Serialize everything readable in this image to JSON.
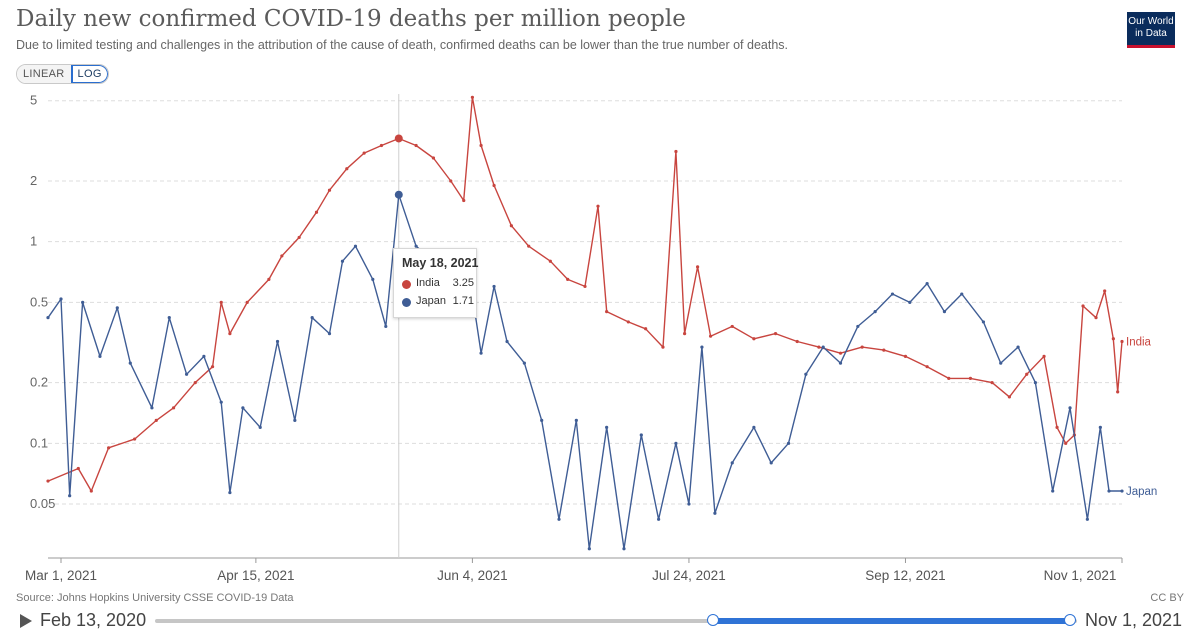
{
  "header": {
    "title": "Daily new confirmed COVID-19 deaths per million people",
    "subtitle": "Due to limited testing and challenges in the attribution of the cause of death, confirmed deaths can be lower than the true number of deaths.",
    "logo_line1": "Our World",
    "logo_line2": "in Data"
  },
  "scale_toggle": {
    "linear_label": "LINEAR",
    "log_label": "LOG",
    "selected": "LOG"
  },
  "tooltip": {
    "date": "May 18, 2021",
    "rows": [
      {
        "name": "India",
        "value": "3.25"
      },
      {
        "name": "Japan",
        "value": "1.71"
      }
    ]
  },
  "footer": {
    "source": "Source: Johns Hopkins University CSSE COVID-19 Data",
    "license": "CC BY"
  },
  "timeline": {
    "start_label": "Feb 13, 2020",
    "end_label": "Nov 1, 2021",
    "selected_start_fraction": 0.61,
    "selected_end_fraction": 1.0
  },
  "colors": {
    "India": "#c8453f",
    "Japan": "#3f5d95",
    "grid": "#dddddd",
    "accent": "#2f73d6"
  },
  "chart_data": {
    "type": "line",
    "title": "Daily new confirmed COVID-19 deaths per million people",
    "yscale": "log",
    "ylim": [
      0.027,
      5.4
    ],
    "yticks": [
      0.05,
      0.1,
      0.2,
      0.5,
      1,
      2,
      5
    ],
    "ytick_labels": [
      "0.05",
      "0.1",
      "0.2",
      "0.5",
      "1",
      "2",
      "5"
    ],
    "xlim": [
      "2021-02-26",
      "2021-11-01"
    ],
    "xticks": [
      "2021-03-01",
      "2021-04-15",
      "2021-06-04",
      "2021-07-24",
      "2021-09-12",
      "2021-11-01"
    ],
    "xtick_labels": [
      "Mar 1, 2021",
      "Apr 15, 2021",
      "Jun 4, 2021",
      "Jul 24, 2021",
      "Sep 12, 2021",
      "Nov 1, 2021"
    ],
    "hover_date": "2021-05-18",
    "series": [
      {
        "name": "India",
        "points": [
          [
            "2021-02-26",
            0.065
          ],
          [
            "2021-03-05",
            0.075
          ],
          [
            "2021-03-08",
            0.058
          ],
          [
            "2021-03-12",
            0.095
          ],
          [
            "2021-03-18",
            0.105
          ],
          [
            "2021-03-23",
            0.13
          ],
          [
            "2021-03-27",
            0.15
          ],
          [
            "2021-04-01",
            0.2
          ],
          [
            "2021-04-05",
            0.24
          ],
          [
            "2021-04-07",
            0.5
          ],
          [
            "2021-04-09",
            0.35
          ],
          [
            "2021-04-13",
            0.5
          ],
          [
            "2021-04-18",
            0.65
          ],
          [
            "2021-04-21",
            0.85
          ],
          [
            "2021-04-25",
            1.05
          ],
          [
            "2021-04-29",
            1.4
          ],
          [
            "2021-05-02",
            1.8
          ],
          [
            "2021-05-06",
            2.3
          ],
          [
            "2021-05-10",
            2.75
          ],
          [
            "2021-05-14",
            3.0
          ],
          [
            "2021-05-18",
            3.25
          ],
          [
            "2021-05-22",
            3.0
          ],
          [
            "2021-05-26",
            2.6
          ],
          [
            "2021-05-30",
            2.0
          ],
          [
            "2021-06-02",
            1.6
          ],
          [
            "2021-06-04",
            5.2
          ],
          [
            "2021-06-06",
            3.0
          ],
          [
            "2021-06-09",
            1.9
          ],
          [
            "2021-06-13",
            1.2
          ],
          [
            "2021-06-17",
            0.95
          ],
          [
            "2021-06-22",
            0.8
          ],
          [
            "2021-06-26",
            0.65
          ],
          [
            "2021-06-30",
            0.6
          ],
          [
            "2021-07-03",
            1.5
          ],
          [
            "2021-07-05",
            0.45
          ],
          [
            "2021-07-10",
            0.4
          ],
          [
            "2021-07-14",
            0.37
          ],
          [
            "2021-07-18",
            0.3
          ],
          [
            "2021-07-21",
            2.8
          ],
          [
            "2021-07-23",
            0.35
          ],
          [
            "2021-07-26",
            0.75
          ],
          [
            "2021-07-29",
            0.34
          ],
          [
            "2021-08-03",
            0.38
          ],
          [
            "2021-08-08",
            0.33
          ],
          [
            "2021-08-13",
            0.35
          ],
          [
            "2021-08-18",
            0.32
          ],
          [
            "2021-08-23",
            0.3
          ],
          [
            "2021-08-28",
            0.28
          ],
          [
            "2021-09-02",
            0.3
          ],
          [
            "2021-09-07",
            0.29
          ],
          [
            "2021-09-12",
            0.27
          ],
          [
            "2021-09-17",
            0.24
          ],
          [
            "2021-09-22",
            0.21
          ],
          [
            "2021-09-27",
            0.21
          ],
          [
            "2021-10-02",
            0.2
          ],
          [
            "2021-10-06",
            0.17
          ],
          [
            "2021-10-10",
            0.22
          ],
          [
            "2021-10-14",
            0.27
          ],
          [
            "2021-10-17",
            0.12
          ],
          [
            "2021-10-19",
            0.1
          ],
          [
            "2021-10-21",
            0.11
          ],
          [
            "2021-10-23",
            0.48
          ],
          [
            "2021-10-26",
            0.42
          ],
          [
            "2021-10-28",
            0.57
          ],
          [
            "2021-10-30",
            0.33
          ],
          [
            "2021-10-31",
            0.18
          ],
          [
            "2021-11-01",
            0.32
          ]
        ]
      },
      {
        "name": "Japan",
        "points": [
          [
            "2021-02-26",
            0.42
          ],
          [
            "2021-03-01",
            0.52
          ],
          [
            "2021-03-03",
            0.055
          ],
          [
            "2021-03-06",
            0.5
          ],
          [
            "2021-03-10",
            0.27
          ],
          [
            "2021-03-14",
            0.47
          ],
          [
            "2021-03-17",
            0.25
          ],
          [
            "2021-03-22",
            0.15
          ],
          [
            "2021-03-26",
            0.42
          ],
          [
            "2021-03-30",
            0.22
          ],
          [
            "2021-04-03",
            0.27
          ],
          [
            "2021-04-07",
            0.16
          ],
          [
            "2021-04-09",
            0.057
          ],
          [
            "2021-04-12",
            0.15
          ],
          [
            "2021-04-16",
            0.12
          ],
          [
            "2021-04-20",
            0.32
          ],
          [
            "2021-04-24",
            0.13
          ],
          [
            "2021-04-28",
            0.42
          ],
          [
            "2021-05-02",
            0.35
          ],
          [
            "2021-05-05",
            0.8
          ],
          [
            "2021-05-08",
            0.95
          ],
          [
            "2021-05-12",
            0.65
          ],
          [
            "2021-05-15",
            0.38
          ],
          [
            "2021-05-18",
            1.71
          ],
          [
            "2021-05-22",
            0.95
          ],
          [
            "2021-05-26",
            0.8
          ],
          [
            "2021-05-30",
            0.9
          ],
          [
            "2021-06-03",
            0.75
          ],
          [
            "2021-06-06",
            0.28
          ],
          [
            "2021-06-09",
            0.6
          ],
          [
            "2021-06-12",
            0.32
          ],
          [
            "2021-06-16",
            0.25
          ],
          [
            "2021-06-20",
            0.13
          ],
          [
            "2021-06-24",
            0.042
          ],
          [
            "2021-06-28",
            0.13
          ],
          [
            "2021-07-01",
            0.03
          ],
          [
            "2021-07-05",
            0.12
          ],
          [
            "2021-07-09",
            0.03
          ],
          [
            "2021-07-13",
            0.11
          ],
          [
            "2021-07-17",
            0.042
          ],
          [
            "2021-07-21",
            0.1
          ],
          [
            "2021-07-24",
            0.05
          ],
          [
            "2021-07-27",
            0.3
          ],
          [
            "2021-07-30",
            0.045
          ],
          [
            "2021-08-03",
            0.08
          ],
          [
            "2021-08-08",
            0.12
          ],
          [
            "2021-08-12",
            0.08
          ],
          [
            "2021-08-16",
            0.1
          ],
          [
            "2021-08-20",
            0.22
          ],
          [
            "2021-08-24",
            0.3
          ],
          [
            "2021-08-28",
            0.25
          ],
          [
            "2021-09-01",
            0.38
          ],
          [
            "2021-09-05",
            0.45
          ],
          [
            "2021-09-09",
            0.55
          ],
          [
            "2021-09-13",
            0.5
          ],
          [
            "2021-09-17",
            0.62
          ],
          [
            "2021-09-21",
            0.45
          ],
          [
            "2021-09-25",
            0.55
          ],
          [
            "2021-09-30",
            0.4
          ],
          [
            "2021-10-04",
            0.25
          ],
          [
            "2021-10-08",
            0.3
          ],
          [
            "2021-10-12",
            0.2
          ],
          [
            "2021-10-16",
            0.058
          ],
          [
            "2021-10-20",
            0.15
          ],
          [
            "2021-10-24",
            0.042
          ],
          [
            "2021-10-27",
            0.12
          ],
          [
            "2021-10-29",
            0.058
          ],
          [
            "2021-11-01",
            0.058
          ]
        ]
      }
    ]
  }
}
